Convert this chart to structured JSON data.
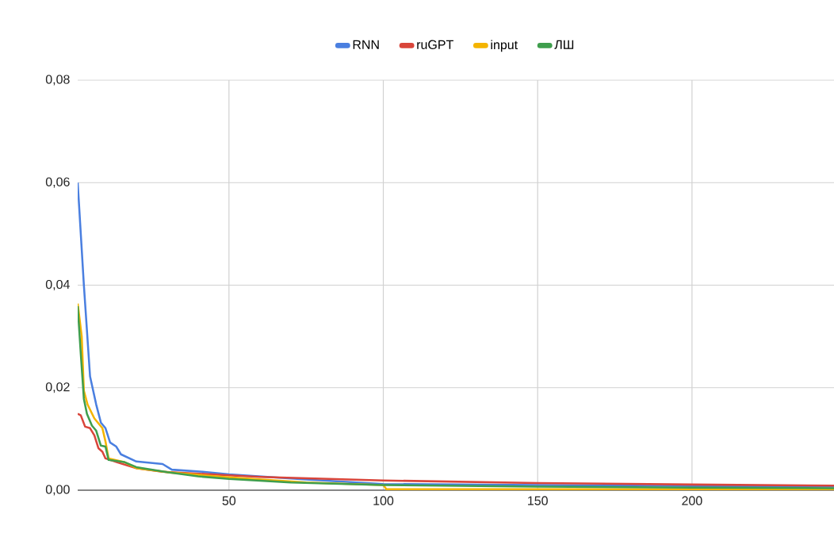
{
  "chart_data": {
    "type": "line",
    "xlim": [
      1,
      246
    ],
    "ylim": [
      0,
      0.08
    ],
    "xticks": [
      50,
      100,
      150,
      200
    ],
    "yticks": [
      {
        "value": 0,
        "label": "0,00"
      },
      {
        "value": 0.02,
        "label": "0,02"
      },
      {
        "value": 0.04,
        "label": "0,04"
      },
      {
        "value": 0.06,
        "label": "0,06"
      },
      {
        "value": 0.08,
        "label": "0,08"
      }
    ],
    "grid": true,
    "legend": "top",
    "series": [
      {
        "name": "RNN",
        "color": "#4a7fe0",
        "x": [
          1,
          3,
          5,
          7,
          8.5,
          10,
          11.5,
          13.5,
          15,
          20,
          28.5,
          31.5,
          41.5,
          50,
          75,
          100,
          150,
          200,
          246
        ],
        "values": [
          0.06,
          0.04,
          0.0222,
          0.0167,
          0.0132,
          0.0121,
          0.0093,
          0.0085,
          0.007,
          0.0056,
          0.0051,
          0.004,
          0.0036,
          0.0031,
          0.0021,
          0.0012,
          0.001,
          0.0008,
          0.0007
        ]
      },
      {
        "name": "ruGPT",
        "color": "#d9453a",
        "x": [
          1,
          2,
          3.4,
          5,
          6.4,
          7.7,
          9,
          10,
          14,
          20,
          28.5,
          50,
          60,
          100,
          150,
          200,
          246
        ],
        "values": [
          0.0149,
          0.0146,
          0.0124,
          0.0121,
          0.0107,
          0.0082,
          0.0075,
          0.0062,
          0.0054,
          0.0043,
          0.0036,
          0.0029,
          0.0026,
          0.0019,
          0.0014,
          0.0011,
          0.0009
        ]
      },
      {
        "name": "input",
        "color": "#f4b400",
        "x": [
          1,
          2.3,
          3,
          4.2,
          6.4,
          9,
          10,
          11,
          16,
          20,
          30,
          50,
          75,
          100,
          101,
          150,
          246
        ],
        "values": [
          0.0364,
          0.03,
          0.0194,
          0.0167,
          0.014,
          0.0121,
          0.0095,
          0.0062,
          0.0055,
          0.0043,
          0.0035,
          0.0025,
          0.0015,
          0.001,
          0.0002,
          0.0002,
          0.0002
        ]
      },
      {
        "name": "ЛШ",
        "color": "#3f9e4d",
        "x": [
          1,
          2,
          3,
          4,
          5.6,
          7,
          8.5,
          10,
          11,
          16,
          20,
          30,
          40,
          50,
          70,
          100,
          150,
          200,
          246
        ],
        "values": [
          0.0359,
          0.0266,
          0.0178,
          0.0149,
          0.0126,
          0.0116,
          0.0087,
          0.0085,
          0.0059,
          0.0055,
          0.0045,
          0.0035,
          0.0027,
          0.0022,
          0.0015,
          0.001,
          0.0007,
          0.0005,
          0.0004
        ]
      }
    ]
  }
}
